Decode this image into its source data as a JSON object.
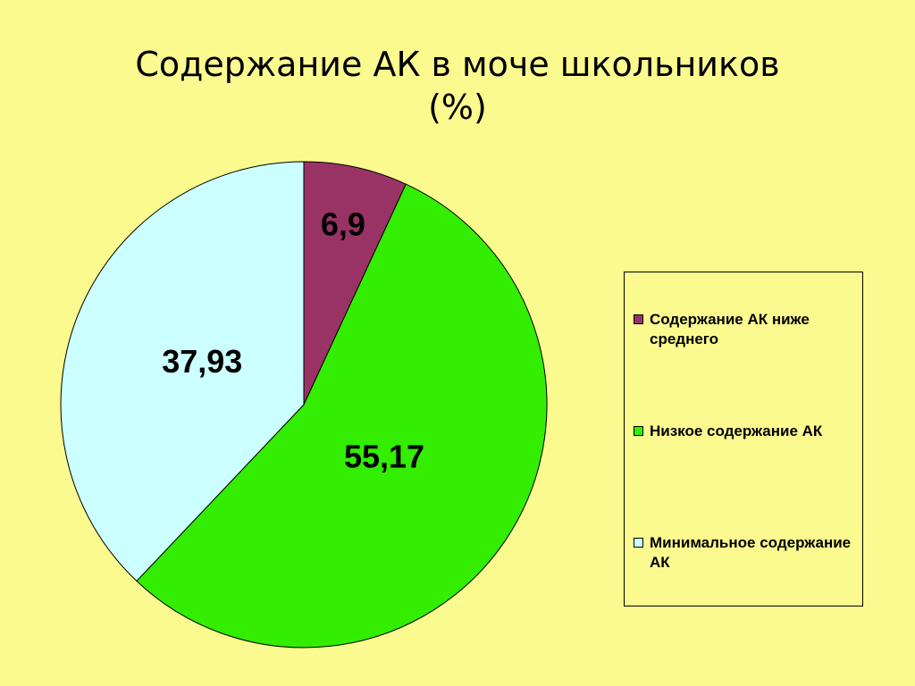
{
  "chart_data": {
    "type": "pie",
    "title": "Содержание АК в моче школьников\n(%)",
    "categories": [
      "Содержание АК ниже среднего",
      "Низкое содержание АК",
      "Минимальное содержание АК"
    ],
    "values": [
      6.9,
      55.17,
      37.93
    ],
    "value_labels": [
      "6,9",
      "55,17",
      "37,93"
    ],
    "colors": [
      "#993366",
      "#33ee00",
      "#ccffff"
    ],
    "legend": "right"
  }
}
